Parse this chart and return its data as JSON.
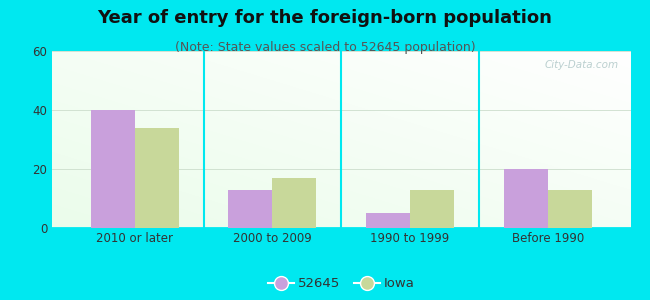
{
  "title": "Year of entry for the foreign-born population",
  "subtitle": "(Note: State values scaled to 52645 population)",
  "categories": [
    "2010 or later",
    "2000 to 2009",
    "1990 to 1999",
    "Before 1990"
  ],
  "series1_label": "52645",
  "series2_label": "Iowa",
  "series1_values": [
    40,
    13,
    5,
    20
  ],
  "series2_values": [
    34,
    17,
    13,
    13
  ],
  "series1_color": "#c9a0dc",
  "series2_color": "#c8d89a",
  "bar_width": 0.32,
  "ylim": [
    0,
    60
  ],
  "yticks": [
    0,
    20,
    40,
    60
  ],
  "background_color": "#00e8f0",
  "title_fontsize": 13,
  "subtitle_fontsize": 9,
  "tick_fontsize": 8.5,
  "legend_fontsize": 9.5,
  "watermark_text": "City-Data.com"
}
